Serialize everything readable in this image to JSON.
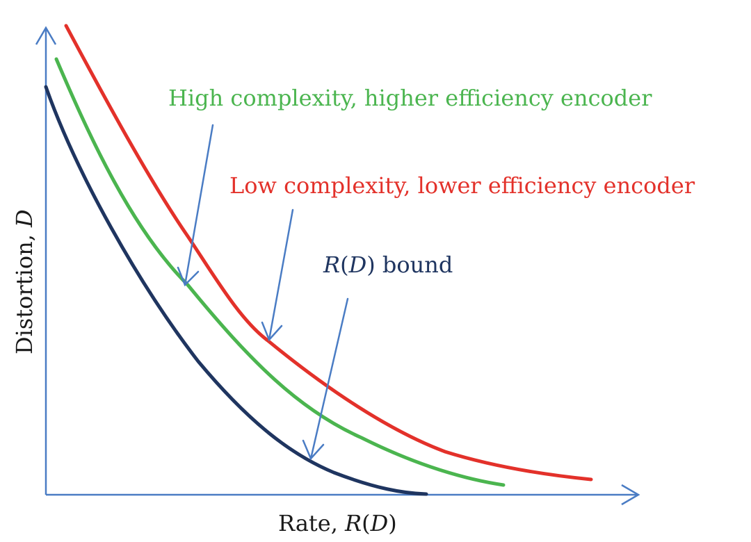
{
  "figure": {
    "x_axis_label": {
      "prefix": "Rate, ",
      "var": "R",
      "open": "(",
      "arg": "D",
      "close": ")"
    },
    "y_axis_label": {
      "prefix": "Distortion, ",
      "var": "D"
    }
  },
  "curves": [
    {
      "id": "low",
      "label": "Low complexity, lower efficiency encoder",
      "color": "#e3312a"
    },
    {
      "id": "high",
      "label": "High complexity, higher efficiency encoder",
      "color": "#4bb54f"
    },
    {
      "id": "bound",
      "label_var": "R",
      "label_open": "(",
      "label_arg": "D",
      "label_close": ")",
      "label_suffix": " bound",
      "color": "#1f3560"
    }
  ],
  "colors": {
    "axis": "#4a7cc4",
    "pointer": "#4a7cc4",
    "text": "#1a1a1a"
  }
}
